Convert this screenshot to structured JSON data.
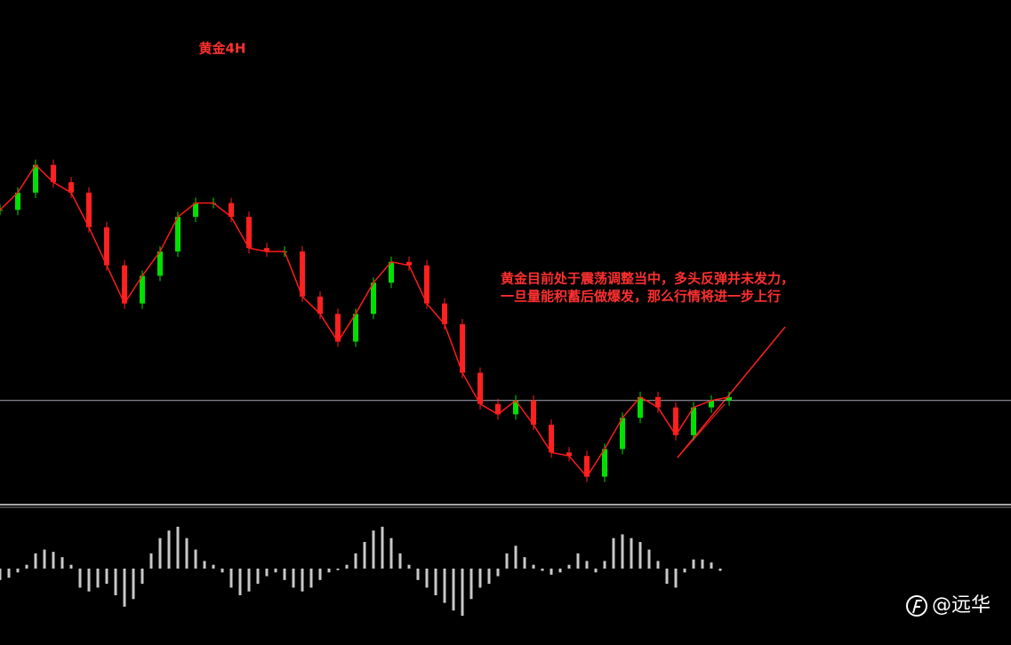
{
  "chart_data": {
    "type": "candlestick",
    "title": "黄金4H",
    "annotation": [
      "黄金目前处于震荡调整当中，多头反弹并未发力，",
      "一旦量能积蓄后做爆发，那么行情将进一步上行"
    ],
    "watermark": "@远华",
    "values": [
      83,
      88,
      96,
      91,
      88,
      78,
      67,
      56,
      64,
      71,
      81,
      85,
      85,
      81,
      72,
      71,
      71,
      58,
      53,
      45,
      53,
      62,
      68,
      67,
      56,
      50,
      36,
      27,
      24,
      28,
      21,
      13,
      12,
      6,
      14,
      23,
      29,
      26,
      18,
      26,
      28,
      29
    ],
    "ylim": [
      0,
      100
    ],
    "level": 28,
    "up_color": "#00e000",
    "down_color": "#ff2020",
    "line_color": "#ff1a1a",
    "oscillator": {
      "values": [
        -15,
        -12,
        -5,
        5,
        20,
        25,
        22,
        15,
        5,
        -25,
        -30,
        -25,
        -20,
        -35,
        -50,
        -40,
        -20,
        20,
        40,
        50,
        55,
        40,
        25,
        10,
        5,
        -5,
        -25,
        -35,
        -30,
        -20,
        -10,
        -5,
        -15,
        -25,
        -30,
        -25,
        -15,
        -5,
        -2,
        5,
        20,
        35,
        50,
        55,
        40,
        20,
        5,
        -15,
        -25,
        -35,
        -45,
        -55,
        -62,
        -40,
        -25,
        -20,
        -10,
        20,
        30,
        15,
        5,
        -3,
        -8,
        -5,
        5,
        20,
        10,
        -5,
        10,
        40,
        45,
        40,
        35,
        25,
        10,
        -20,
        -25,
        -5,
        12,
        12,
        8,
        -3
      ],
      "ylim": [
        -70,
        70
      ],
      "color": "#c8c8c8"
    }
  }
}
